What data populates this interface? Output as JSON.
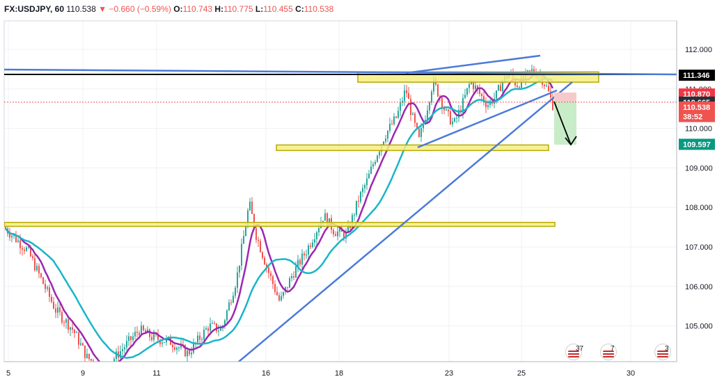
{
  "header": {
    "symbol": "FX:USDJPY, 60",
    "last": "110.538",
    "change": "−0.660 (−0.59%)",
    "o_label": "O:",
    "o_value": "110.743",
    "h_label": "H:",
    "h_value": "110.775",
    "l_label": "L:",
    "l_value": "110.455",
    "c_label": "C:",
    "c_value": "110.538"
  },
  "colors": {
    "up": "#26a69a",
    "down": "#ef5350",
    "ma_fast": "#9c27b0",
    "ma_slow": "#19b5c8",
    "trendline": "#4a7bd8",
    "zone": "#f4f080",
    "zone_border": "#b8a800",
    "resistance_line": "#000000",
    "target_zone": "#c8ecc8",
    "stop_zone": "#f6caca"
  },
  "chart_data": {
    "type": "candlestick",
    "y_axis": {
      "ylim": [
        104.15,
        112.62
      ],
      "ticks": [
        "112.000",
        "111.000",
        "110.000",
        "109.000",
        "108.000",
        "107.000",
        "106.000",
        "105.000"
      ]
    },
    "x_axis": {
      "ticks": [
        "5",
        "9",
        "11",
        "16",
        "18",
        "23",
        "25",
        "30"
      ]
    },
    "price_badges": [
      {
        "label": "111.346",
        "value": 111.346,
        "bg": "#000000",
        "fg": "#ffffff"
      },
      {
        "label": "110.870",
        "value": 110.87,
        "bg": "#f23645",
        "fg": "#ffffff"
      },
      {
        "label": "110.665",
        "value": 110.665,
        "bg": "#2a2e39",
        "fg": "#ffffff"
      },
      {
        "label": "110.538",
        "value": 110.538,
        "bg": "#ef5350",
        "fg": "#ffffff"
      },
      {
        "label": "38:52",
        "value": 110.3,
        "bg": "#ef5350",
        "fg": "#ffffff"
      },
      {
        "label": "109.597",
        "value": 109.597,
        "bg": "#089981",
        "fg": "#ffffff"
      }
    ],
    "zones": [
      {
        "name": "top-resistance-zone",
        "from": "19",
        "to": "28",
        "low": 111.17,
        "high": 111.43
      },
      {
        "name": "mid-support-zone",
        "from": "13",
        "to": "26",
        "low": 109.44,
        "high": 109.58
      },
      {
        "name": "lower-support-zone",
        "from": "0",
        "to": "26",
        "low": 107.52,
        "high": 107.62
      }
    ]
  },
  "events": [
    {
      "count": "37",
      "extra": "4"
    },
    {
      "count": "7",
      "extra": "1"
    },
    {
      "count": "3",
      "extra": "8"
    }
  ]
}
